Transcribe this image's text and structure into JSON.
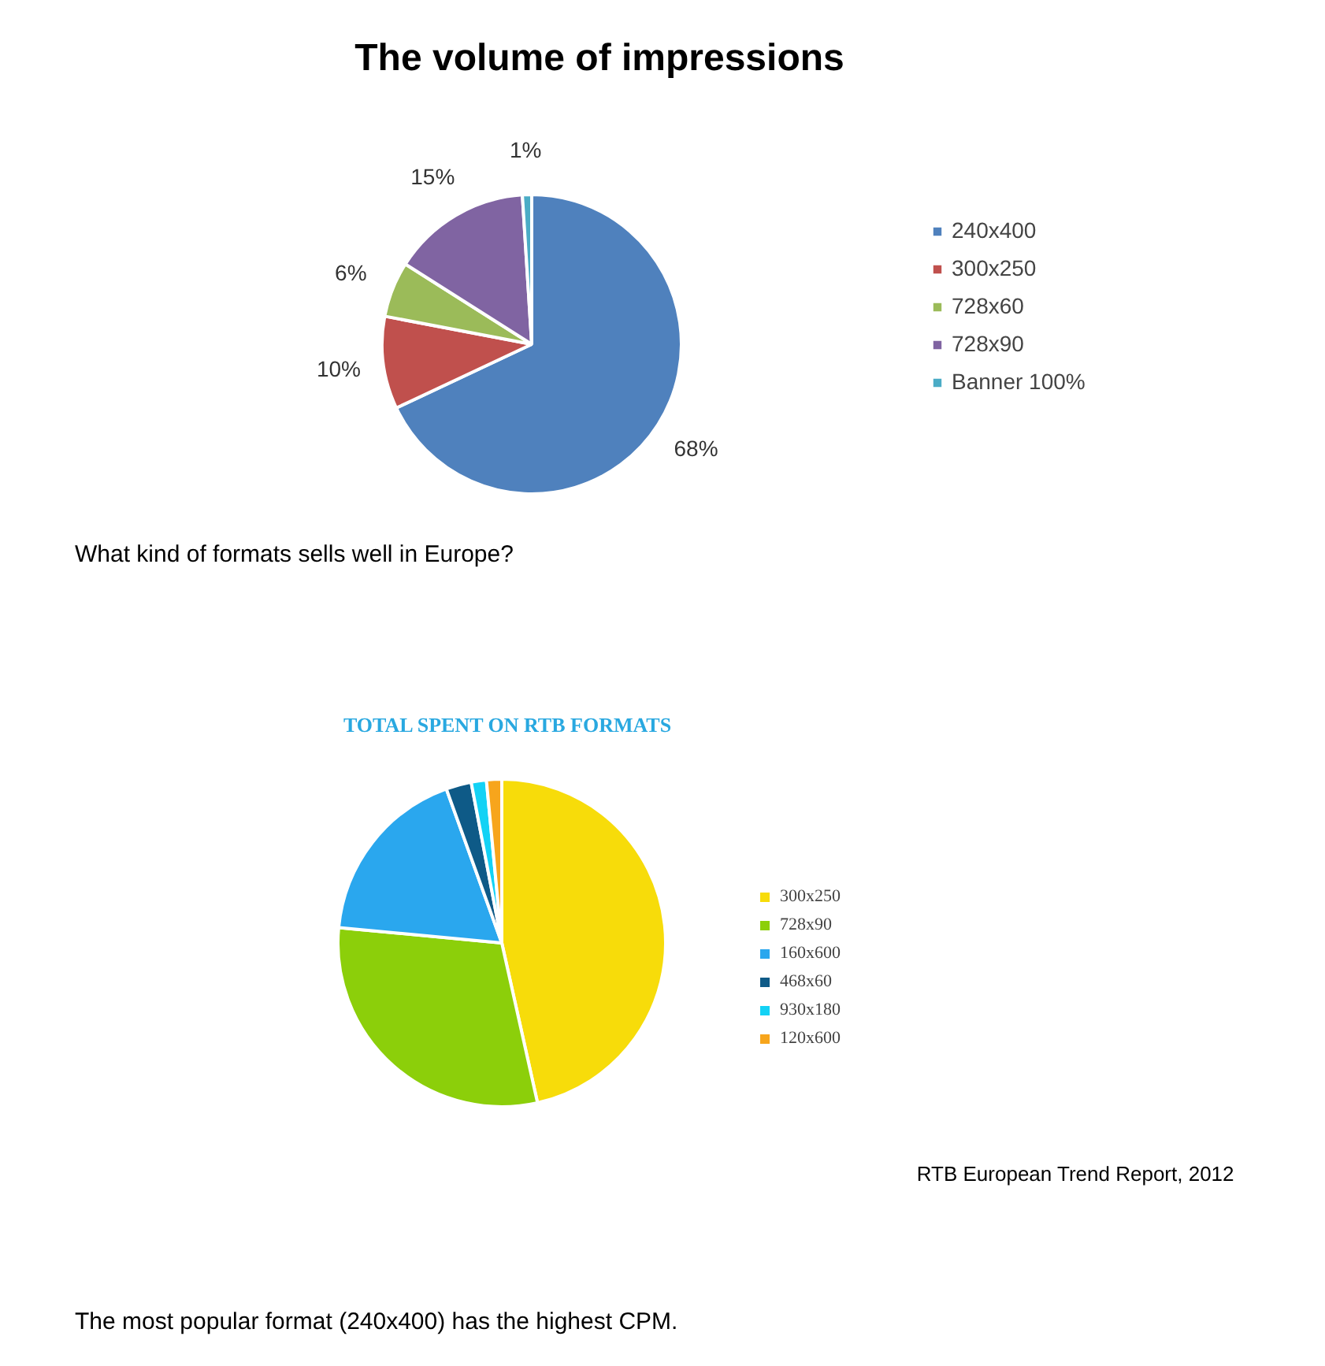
{
  "chart_data": [
    {
      "type": "pie",
      "title": "The volume of impressions",
      "categories": [
        "240x400",
        "300x250",
        "728x60",
        "728x90",
        "Banner 100%"
      ],
      "values": [
        68,
        10,
        6,
        15,
        1
      ],
      "colors": [
        "#4f81bd",
        "#c0504d",
        "#9bbb59",
        "#8064a2",
        "#4bacc6"
      ],
      "value_labels": [
        "68%",
        "10%",
        "6%",
        "15%",
        "1%"
      ],
      "legend": "right",
      "annotations": [
        "What kind of formats sells well in Europe?"
      ]
    },
    {
      "type": "pie",
      "title": "TOTAL SPENT ON RTB FORMATS",
      "categories": [
        "300x250",
        "728x90",
        "160x600",
        "468x60",
        "930x180",
        "120x600"
      ],
      "values": [
        46.5,
        30,
        18,
        2.5,
        1.5,
        1.5
      ],
      "colors": [
        "#f7dc0a",
        "#8ccf0a",
        "#2aa7ee",
        "#0e5a87",
        "#13d2f5",
        "#f7a51c"
      ],
      "legend": "right",
      "annotations": [
        "RTB European Trend Report, 2012",
        "The most popular format (240x400) has the highest CPM."
      ]
    }
  ]
}
